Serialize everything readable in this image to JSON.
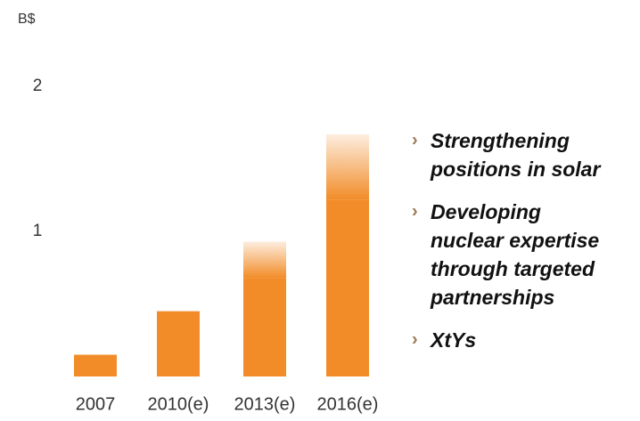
{
  "chart_data": {
    "type": "bar",
    "y_label": "B$",
    "categories": [
      "2007",
      "2010(e)",
      "2013(e)",
      "2016(e)"
    ],
    "values": [
      0.15,
      0.45,
      0.93,
      1.67
    ],
    "faded": [
      false,
      false,
      true,
      true
    ],
    "color": "#f28c28",
    "ylim": [
      0,
      2
    ],
    "yticks": [
      1,
      2
    ],
    "grid": false,
    "bullets": [
      {
        "lines": [
          "Strengthening",
          "positions in solar"
        ]
      },
      {
        "lines": [
          "Developing",
          "nuclear expertise",
          "through targeted",
          "partnerships"
        ]
      },
      {
        "lines": [
          "XtYs"
        ]
      }
    ]
  }
}
